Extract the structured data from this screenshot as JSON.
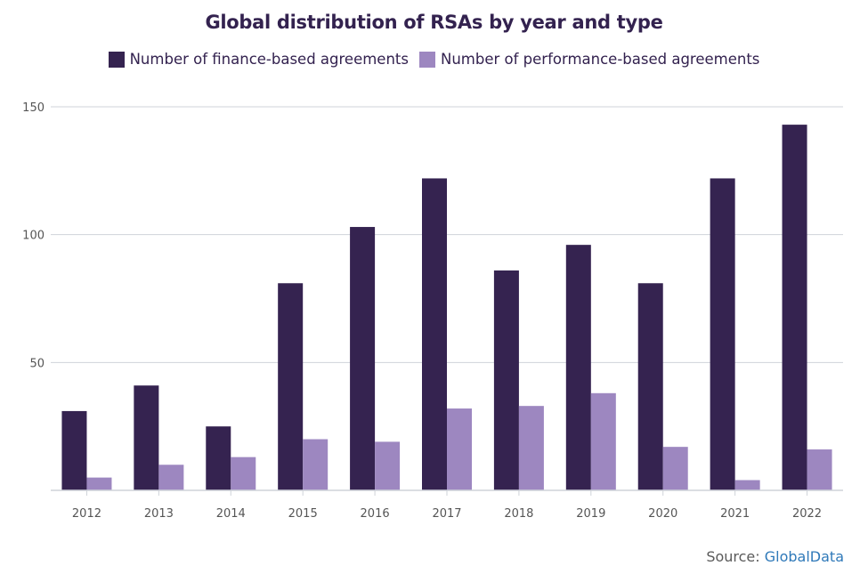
{
  "chart_data": {
    "type": "bar",
    "title": "Global distribution of RSAs by year and type",
    "xlabel": "",
    "ylabel": "",
    "categories": [
      "2012",
      "2013",
      "2014",
      "2015",
      "2016",
      "2017",
      "2018",
      "2019",
      "2020",
      "2021",
      "2022"
    ],
    "series": [
      {
        "name": "Number of finance-based agreements",
        "color": "#352350",
        "values": [
          31,
          41,
          25,
          81,
          103,
          122,
          86,
          96,
          81,
          122,
          143
        ]
      },
      {
        "name": "Number of performance-based agreements",
        "color": "#9d87c0",
        "values": [
          5,
          10,
          13,
          20,
          19,
          32,
          33,
          38,
          17,
          4,
          16
        ]
      }
    ],
    "ylim": [
      0,
      150
    ],
    "yticks": [
      50,
      100,
      150
    ],
    "grid": true,
    "legend_position": "top-center"
  },
  "source": {
    "label": "Source:",
    "link_text": "GlobalData"
  }
}
